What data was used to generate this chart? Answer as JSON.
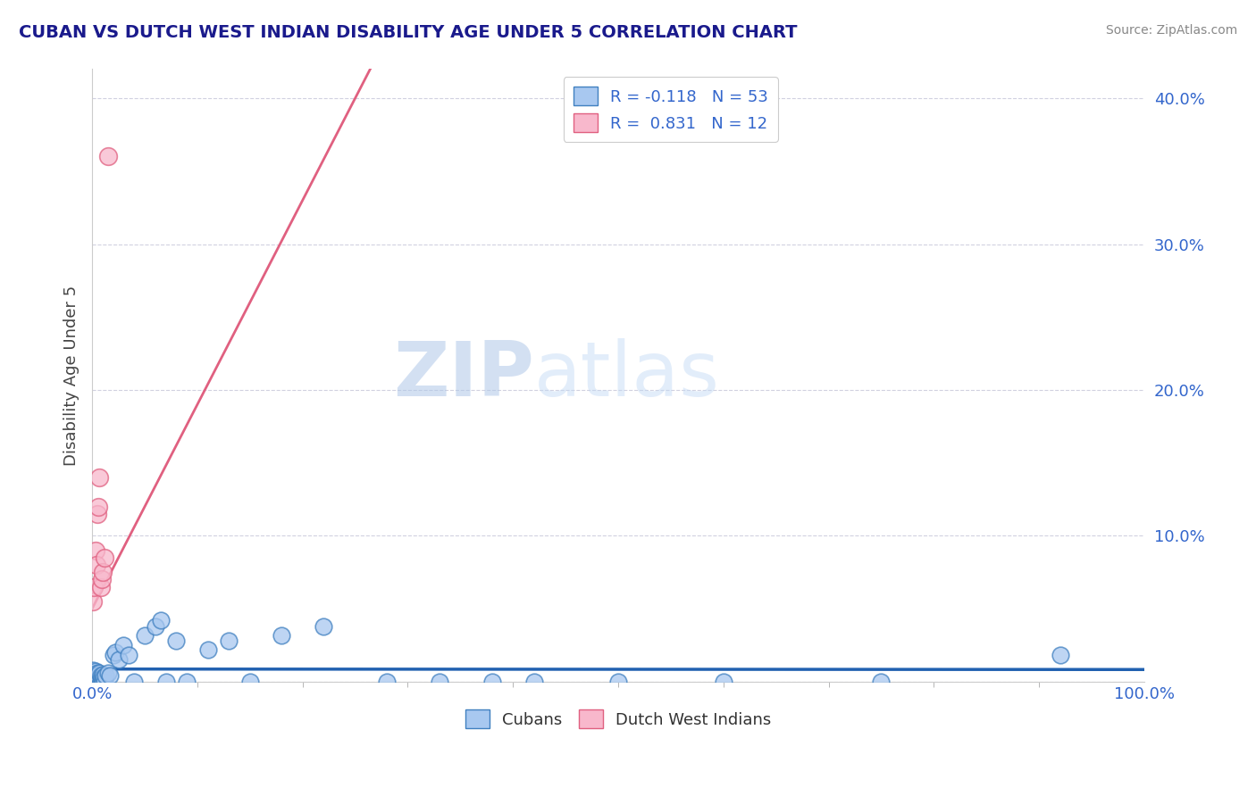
{
  "title": "CUBAN VS DUTCH WEST INDIAN DISABILITY AGE UNDER 5 CORRELATION CHART",
  "source": "Source: ZipAtlas.com",
  "ylabel": "Disability Age Under 5",
  "xlim": [
    0.0,
    1.0
  ],
  "ylim": [
    0.0,
    0.42
  ],
  "ytick_vals": [
    0.0,
    0.1,
    0.2,
    0.3,
    0.4
  ],
  "ytick_labels": [
    "",
    "10.0%",
    "20.0%",
    "30.0%",
    "40.0%"
  ],
  "cubans_R": -0.118,
  "cubans_N": 53,
  "dutch_R": 0.831,
  "dutch_N": 12,
  "blue_scatter_color": "#a8c8f0",
  "blue_edge_color": "#4080c0",
  "pink_scatter_color": "#f8b8cc",
  "pink_edge_color": "#e06080",
  "blue_line_color": "#2060b0",
  "pink_line_color": "#e06080",
  "watermark_zip_color": "#c8d8ec",
  "watermark_atlas_color": "#b8d0f0",
  "background_color": "#ffffff",
  "title_color": "#1a1a8c",
  "axis_label_color": "#3366cc",
  "grid_color": "#ccccdd",
  "cubans_x": [
    0.001,
    0.002,
    0.002,
    0.003,
    0.003,
    0.003,
    0.004,
    0.004,
    0.005,
    0.005,
    0.005,
    0.006,
    0.006,
    0.006,
    0.007,
    0.007,
    0.007,
    0.008,
    0.008,
    0.009,
    0.009,
    0.01,
    0.01,
    0.011,
    0.012,
    0.013,
    0.015,
    0.017,
    0.02,
    0.022,
    0.025,
    0.03,
    0.035,
    0.04,
    0.05,
    0.06,
    0.065,
    0.07,
    0.08,
    0.09,
    0.11,
    0.13,
    0.15,
    0.18,
    0.22,
    0.28,
    0.33,
    0.38,
    0.42,
    0.5,
    0.6,
    0.75,
    0.92
  ],
  "cubans_y": [
    0.008,
    0.0,
    0.005,
    0.0,
    0.003,
    0.007,
    0.0,
    0.004,
    0.0,
    0.003,
    0.006,
    0.0,
    0.002,
    0.005,
    0.0,
    0.003,
    0.006,
    0.0,
    0.004,
    0.0,
    0.003,
    0.0,
    0.005,
    0.003,
    0.0,
    0.004,
    0.006,
    0.004,
    0.018,
    0.02,
    0.015,
    0.025,
    0.018,
    0.0,
    0.032,
    0.038,
    0.042,
    0.0,
    0.028,
    0.0,
    0.022,
    0.028,
    0.0,
    0.032,
    0.038,
    0.0,
    0.0,
    0.0,
    0.0,
    0.0,
    0.0,
    0.0,
    0.018
  ],
  "dutch_x": [
    0.001,
    0.002,
    0.003,
    0.004,
    0.005,
    0.006,
    0.007,
    0.008,
    0.009,
    0.01,
    0.012,
    0.015
  ],
  "dutch_y": [
    0.055,
    0.065,
    0.09,
    0.08,
    0.115,
    0.12,
    0.14,
    0.065,
    0.07,
    0.075,
    0.085,
    0.36
  ],
  "dutch_line_x_start": 0.0,
  "dutch_line_x_end": 1.0,
  "cubans_line_x_start": 0.0,
  "cubans_line_x_end": 1.0
}
